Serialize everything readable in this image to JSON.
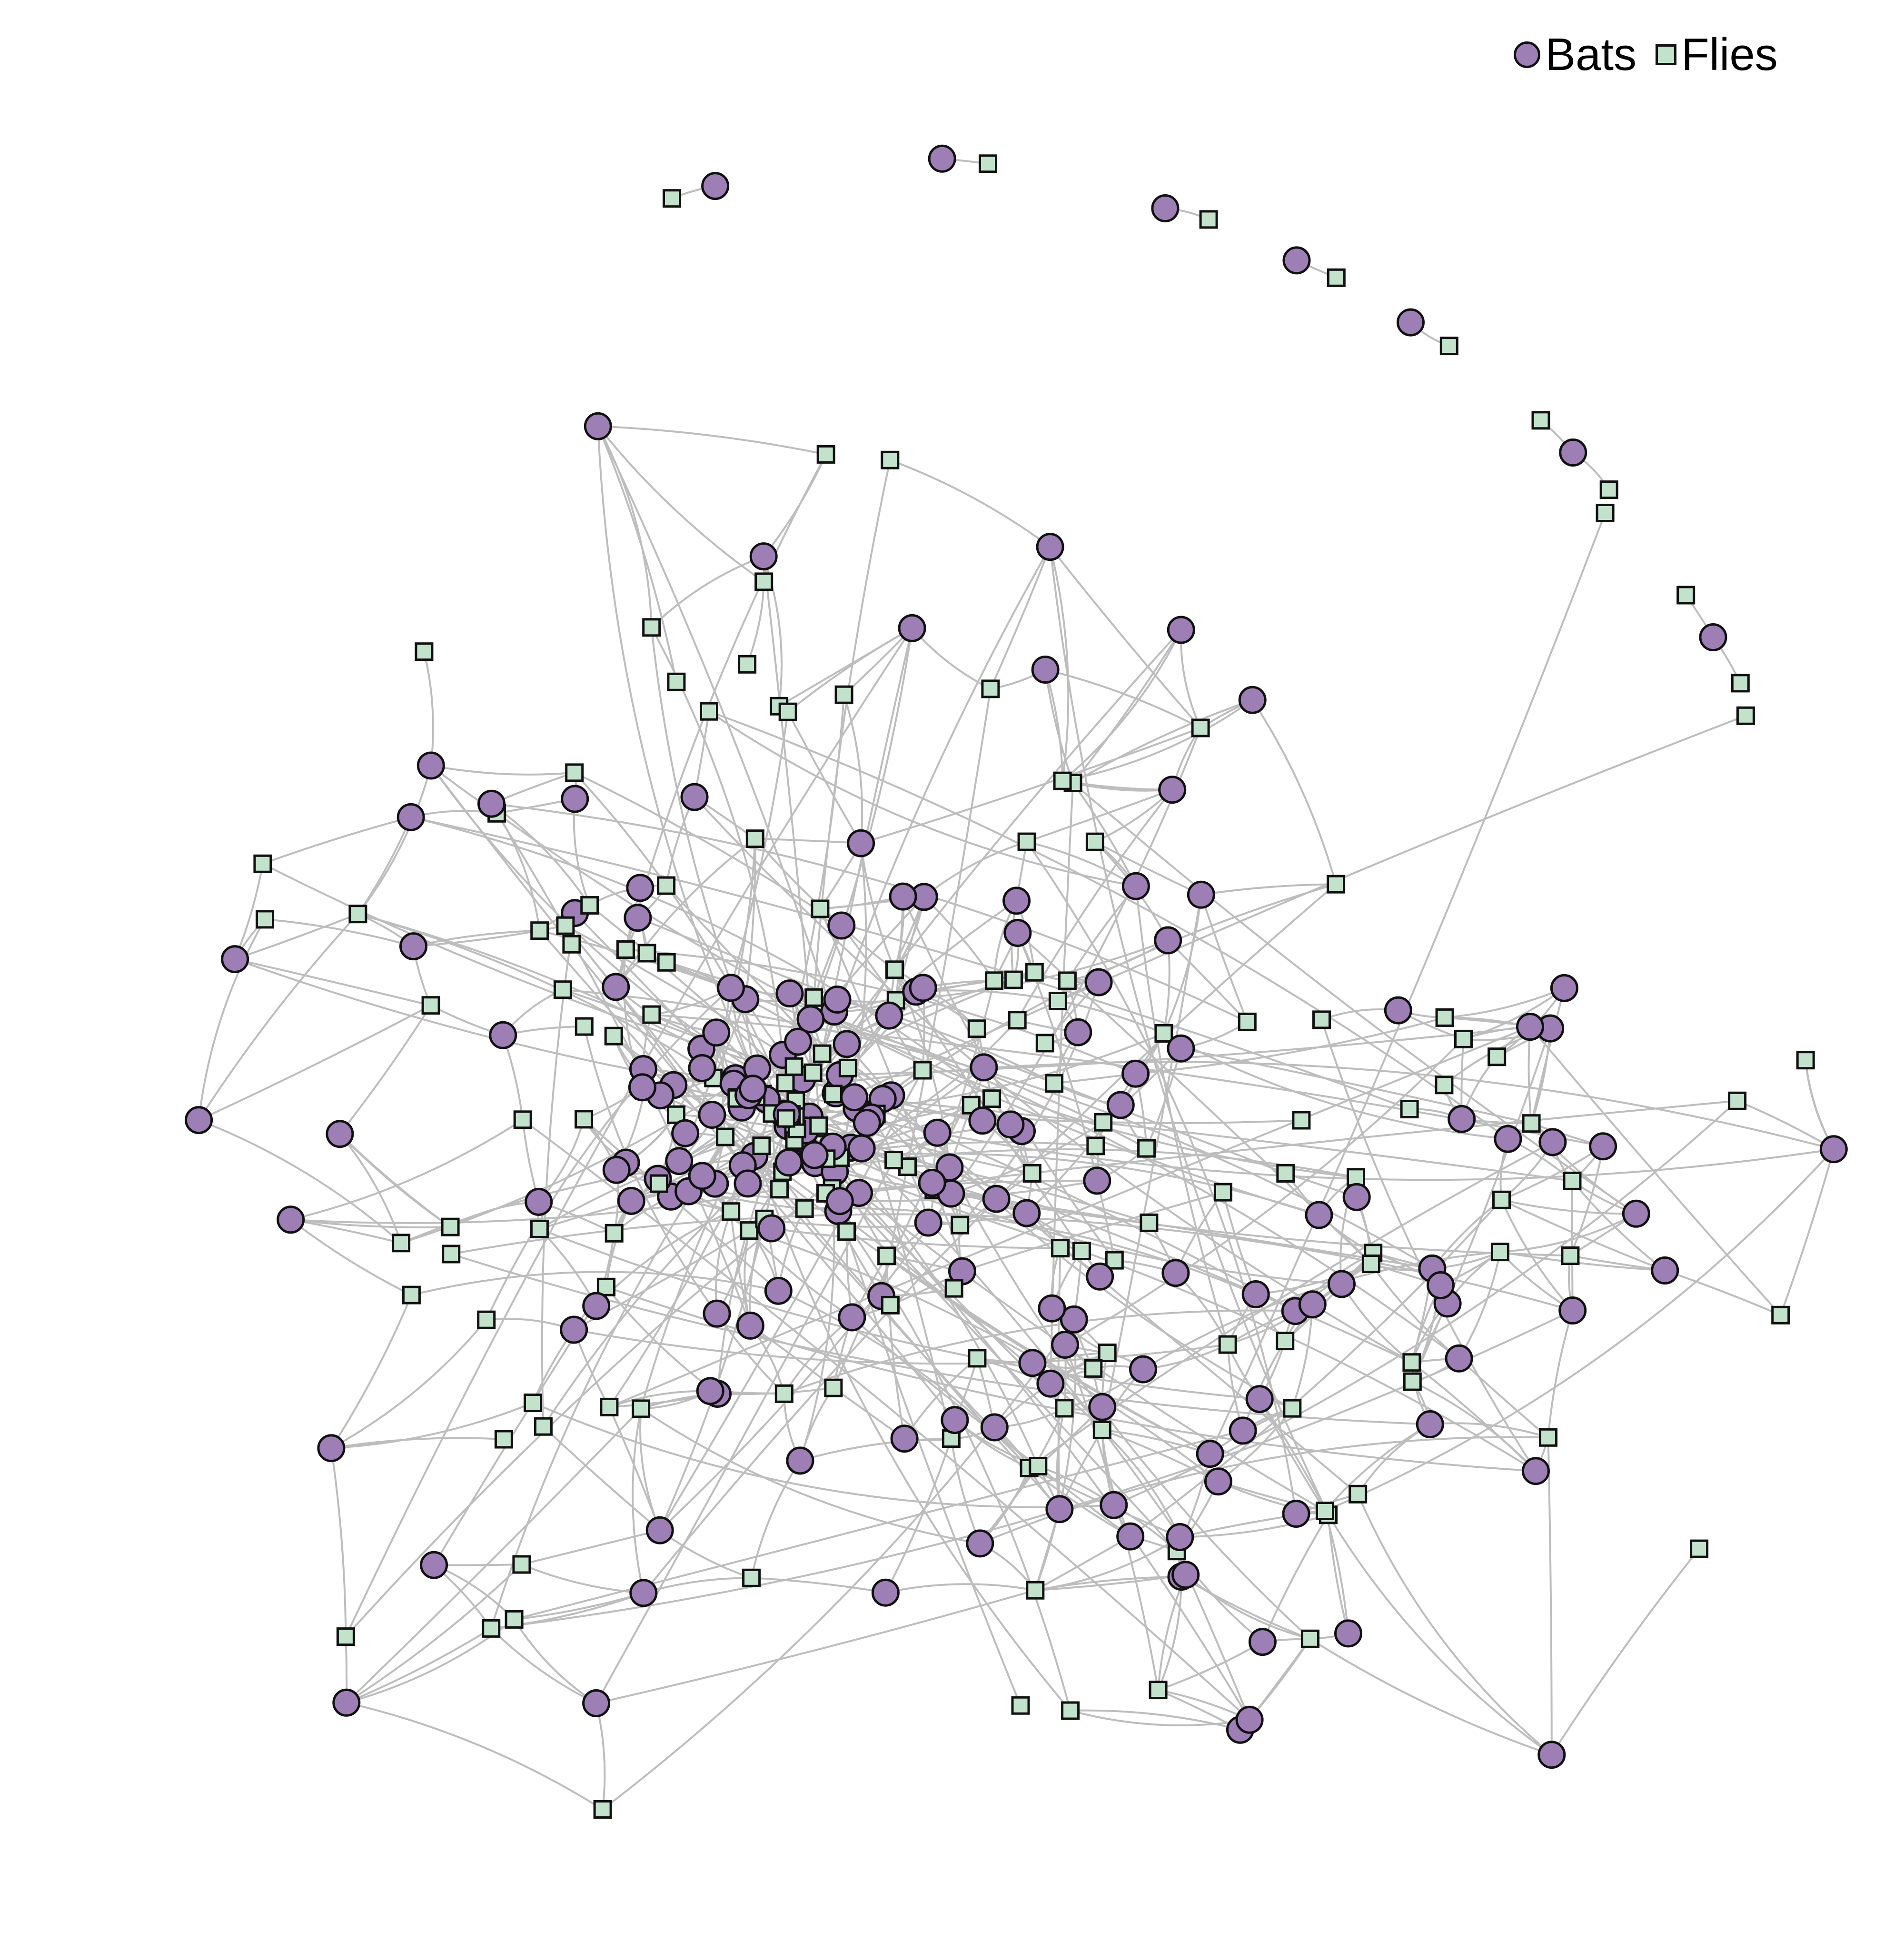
{
  "legend": [
    {
      "label": "Bats",
      "shape": "circle",
      "color": "#9d7fb6"
    },
    {
      "label": "Flies",
      "shape": "square",
      "color": "#c3e2cc"
    }
  ],
  "style": {
    "edge_color": "#bdbdbd",
    "node_stroke": "#111111"
  }
}
